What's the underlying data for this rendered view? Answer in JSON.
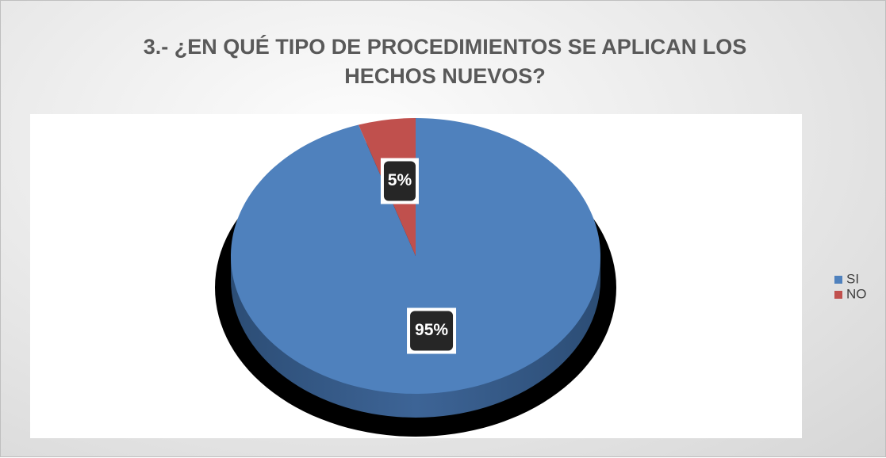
{
  "chart_data": {
    "type": "pie",
    "title": "3.- ¿EN QUÉ TIPO DE PROCEDIMIENTOS SE APLICAN LOS HECHOS NUEVOS?",
    "categories": [
      "SI",
      "NO"
    ],
    "values": [
      95,
      5
    ],
    "value_labels": [
      "95%",
      "5%"
    ],
    "colors": [
      "#4f81bd",
      "#c0504d"
    ],
    "legend": "right"
  }
}
